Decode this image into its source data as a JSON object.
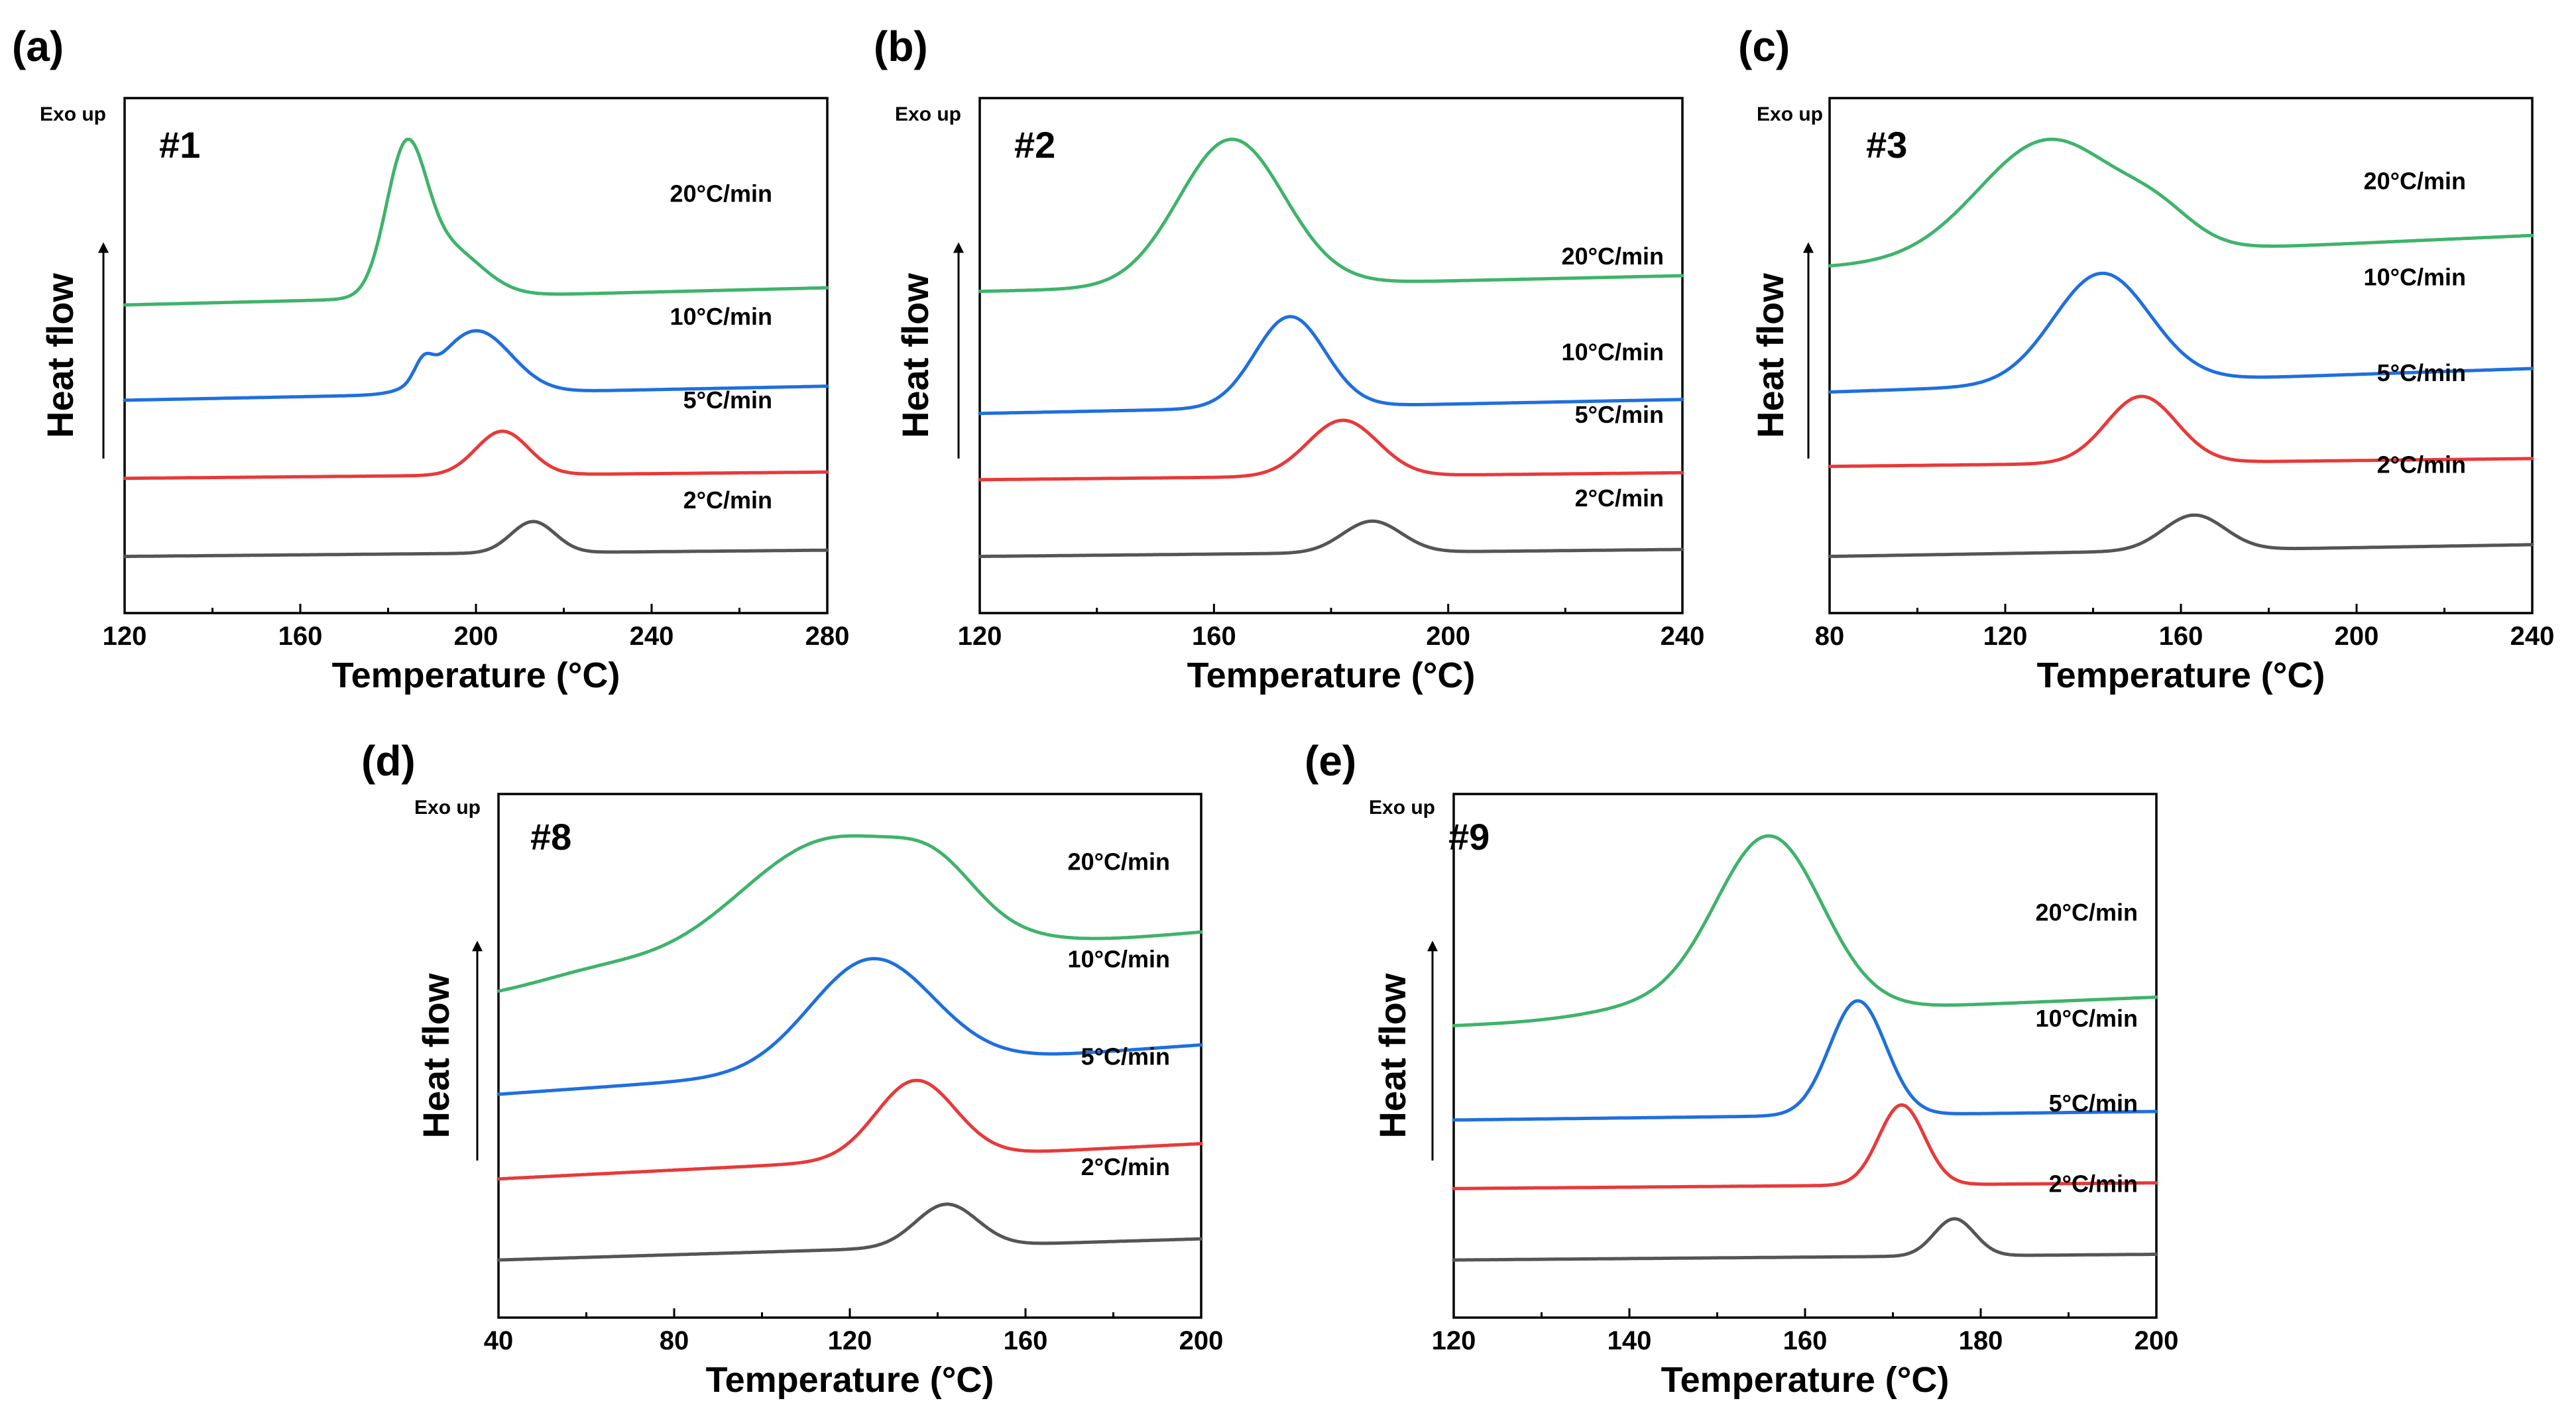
{
  "colors": {
    "2°C/min": "#555555",
    "5°C/min": "#e8393a",
    "10°C/min": "#1f6fde",
    "20°C/min": "#3fb36b"
  },
  "chart_data": [
    {
      "type": "line",
      "panel_label": "(a)",
      "sample": "#1",
      "exo_label": "Exo up",
      "xlabel": "Temperature (°C)",
      "ylabel": "Heat flow",
      "xlim": [
        120,
        280
      ],
      "xticks": [
        "120",
        "160",
        "200",
        "240",
        "280"
      ],
      "series": [
        {
          "name": "20°C/min",
          "baseline": 0.855,
          "slope": 0.055,
          "peaks": [
            [
              184,
              0.42,
              4.5
            ],
            [
              193,
              0.16,
              8
            ]
          ],
          "label_y": 0.85
        },
        {
          "name": "10°C/min",
          "baseline": 0.55,
          "slope": 0.045,
          "peaks": [
            [
              200,
              0.2,
              8
            ],
            [
              188,
              0.06,
              2
            ]
          ],
          "label_y": 0.555
        },
        {
          "name": "5°C/min",
          "baseline": 0.3,
          "slope": 0.02,
          "peaks": [
            [
              206,
              0.14,
              6
            ]
          ],
          "label_y": 0.355
        },
        {
          "name": "2°C/min",
          "baseline": 0.05,
          "slope": 0.02,
          "peaks": [
            [
              213,
              0.1,
              5
            ]
          ],
          "label_y": 0.115
        }
      ]
    },
    {
      "type": "line",
      "panel_label": "(b)",
      "sample": "#2",
      "exo_label": "Exo up",
      "xlabel": "Temperature (°C)",
      "ylabel": "Heat flow",
      "xlim": [
        120,
        240
      ],
      "xticks": [
        "120",
        "160",
        "200",
        "240"
      ],
      "series": [
        {
          "name": "20°C/min",
          "baseline": 0.79,
          "slope": 0.045,
          "peaks": [
            [
              163,
              0.42,
              9
            ]
          ],
          "label_y": 0.7
        },
        {
          "name": "10°C/min",
          "baseline": 0.44,
          "slope": 0.04,
          "peaks": [
            [
              173,
              0.26,
              6
            ]
          ],
          "label_y": 0.47
        },
        {
          "name": "5°C/min",
          "baseline": 0.25,
          "slope": 0.02,
          "peaks": [
            [
              182,
              0.16,
              6
            ]
          ],
          "label_y": 0.32
        },
        {
          "name": "2°C/min",
          "baseline": 0.03,
          "slope": 0.02,
          "peaks": [
            [
              187,
              0.09,
              5
            ]
          ],
          "label_y": 0.12
        }
      ]
    },
    {
      "type": "line",
      "panel_label": "(c)",
      "sample": "#3",
      "exo_label": "Exo up",
      "xlabel": "Temperature (°C)",
      "ylabel": "Heat flow",
      "xlim": [
        80,
        240
      ],
      "xticks": [
        "80",
        "120",
        "160",
        "200",
        "240"
      ],
      "series": [
        {
          "name": "20°C/min",
          "baseline": 0.84,
          "slope": 0.08,
          "peaks": [
            [
              130,
              0.3,
              16
            ],
            [
              155,
              0.06,
              8
            ]
          ],
          "label_y": 0.88
        },
        {
          "name": "10°C/min",
          "baseline": 0.52,
          "slope": 0.06,
          "peaks": [
            [
              142,
              0.28,
              11
            ]
          ],
          "label_y": 0.65
        },
        {
          "name": "5°C/min",
          "baseline": 0.33,
          "slope": 0.02,
          "peaks": [
            [
              151,
              0.17,
              8
            ]
          ],
          "label_y": 0.42
        },
        {
          "name": "2°C/min",
          "baseline": 0.1,
          "slope": 0.03,
          "peaks": [
            [
              163,
              0.09,
              7
            ]
          ],
          "label_y": 0.2
        }
      ]
    },
    {
      "type": "line",
      "panel_label": "(d)",
      "sample": "#8",
      "exo_label": "Exo up",
      "xlabel": "Temperature (°C)",
      "ylabel": "Heat flow",
      "xlim": [
        40,
        200
      ],
      "xticks": [
        "40",
        "80",
        "120",
        "160",
        "200"
      ],
      "series": [
        {
          "name": "20°C/min",
          "baseline": 0.83,
          "slope": 0.18,
          "peaks": [
            [
              116,
              0.36,
              22
            ],
            [
              140,
              0.1,
              9
            ],
            [
              62,
              0.04,
              14
            ]
          ],
          "label_y": 0.92
        },
        {
          "name": "10°C/min",
          "baseline": 0.55,
          "slope": 0.14,
          "peaks": [
            [
              125,
              0.31,
              14
            ]
          ],
          "label_y": 0.69
        },
        {
          "name": "5°C/min",
          "baseline": 0.31,
          "slope": 0.1,
          "peaks": [
            [
              135,
              0.22,
              9
            ]
          ],
          "label_y": 0.46
        },
        {
          "name": "2°C/min",
          "baseline": 0.08,
          "slope": 0.06,
          "peaks": [
            [
              142,
              0.12,
              7
            ]
          ],
          "label_y": 0.2
        }
      ]
    },
    {
      "type": "line",
      "panel_label": "(e)",
      "sample": "#9",
      "exo_label": "Exo up",
      "xlabel": "Temperature (°C)",
      "ylabel": "Heat flow",
      "xlim": [
        120,
        200
      ],
      "xticks": [
        "120",
        "140",
        "160",
        "180",
        "200"
      ],
      "series": [
        {
          "name": "20°C/min",
          "baseline": 0.88,
          "slope": 0.1,
          "peaks": [
            [
              156,
              0.6,
              6
            ],
            [
              145,
              0.05,
              8
            ]
          ],
          "label_y": 0.8
        },
        {
          "name": "10°C/min",
          "baseline": 0.55,
          "slope": 0.03,
          "peaks": [
            [
              166,
              0.4,
              3.2
            ]
          ],
          "label_y": 0.55
        },
        {
          "name": "5°C/min",
          "baseline": 0.31,
          "slope": 0.02,
          "peaks": [
            [
              171,
              0.28,
              2.6
            ]
          ],
          "label_y": 0.35
        },
        {
          "name": "2°C/min",
          "baseline": 0.06,
          "slope": 0.02,
          "peaks": [
            [
              177,
              0.13,
              2.3
            ]
          ],
          "label_y": 0.16
        }
      ]
    }
  ]
}
